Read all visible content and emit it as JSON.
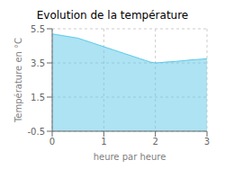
{
  "chart_data": {
    "type": "area",
    "title": "Evolution de la température",
    "xlabel": "heure par heure",
    "ylabel": "Température en °C",
    "x": [
      0,
      0.1,
      0.2,
      0.3,
      0.4,
      0.5,
      0.6,
      0.7,
      0.8,
      0.9,
      1.0,
      1.1,
      1.2,
      1.3,
      1.4,
      1.5,
      1.6,
      1.7,
      1.8,
      1.9,
      2.0,
      2.1,
      2.2,
      2.3,
      2.4,
      2.5,
      2.6,
      2.7,
      2.8,
      2.9,
      3.0
    ],
    "values": [
      5.2,
      5.15,
      5.1,
      5.05,
      5.0,
      4.95,
      4.85,
      4.75,
      4.65,
      4.55,
      4.45,
      4.35,
      4.25,
      4.15,
      4.05,
      3.95,
      3.85,
      3.75,
      3.65,
      3.55,
      3.5,
      3.52,
      3.55,
      3.57,
      3.59,
      3.62,
      3.65,
      3.68,
      3.7,
      3.72,
      3.75
    ],
    "color": "#5bc8e8",
    "xlim": [
      0,
      3
    ],
    "ylim": [
      -0.5,
      5.5
    ],
    "xticks": [
      0,
      1,
      2,
      3
    ],
    "yticks": [
      -0.5,
      1.5,
      3.5,
      5.5
    ],
    "grid": true
  }
}
